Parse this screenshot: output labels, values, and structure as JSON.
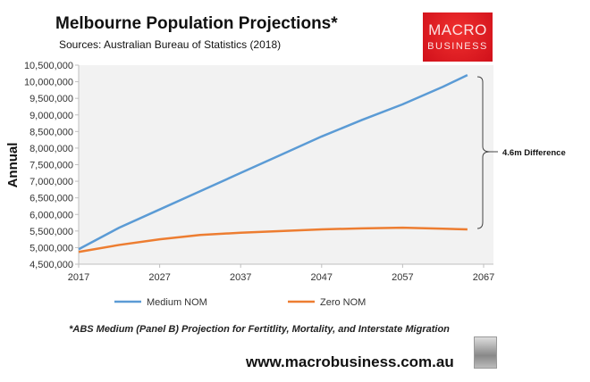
{
  "title": "Melbourne Population Projections*",
  "sources": "Sources: Australian Bureau of Statistics (2018)",
  "logo": {
    "line1": "MACRO",
    "line2": "BUSINESS"
  },
  "footnote": "*ABS Medium (Panel B) Projection for Fertitlity, Mortality, and Interstate Migration",
  "url": "www.macrobusiness.com.au",
  "chart_data": {
    "type": "line",
    "title": "Melbourne Population Projections*",
    "xlabel": "",
    "ylabel": "Annual",
    "xlim": [
      2017,
      2067
    ],
    "ylim": [
      4500000,
      10500000
    ],
    "xticks": [
      2017,
      2027,
      2037,
      2047,
      2057,
      2067
    ],
    "xtick_labels": [
      "2017",
      "2027",
      "2037",
      "2047",
      "2057",
      "2067"
    ],
    "yticks": [
      4500000,
      5000000,
      5500000,
      6000000,
      6500000,
      7000000,
      7500000,
      8000000,
      8500000,
      9000000,
      9500000,
      10000000,
      10500000
    ],
    "ytick_labels": [
      "4,500,000",
      "5,000,000",
      "5,500,000",
      "6,000,000",
      "6,500,000",
      "7,000,000",
      "7,500,000",
      "8,000,000",
      "8,500,000",
      "9,000,000",
      "9,500,000",
      "10,000,000",
      "10,500,000"
    ],
    "x": [
      2017,
      2022,
      2027,
      2032,
      2037,
      2042,
      2047,
      2052,
      2057,
      2062,
      2065
    ],
    "series": [
      {
        "name": "Medium NOM",
        "color": "#5b9bd5",
        "values": [
          4950000,
          5600000,
          6150000,
          6700000,
          7250000,
          7800000,
          8350000,
          8850000,
          9320000,
          9850000,
          10200000
        ]
      },
      {
        "name": "Zero NOM",
        "color": "#ed7d31",
        "values": [
          4870000,
          5080000,
          5250000,
          5380000,
          5450000,
          5500000,
          5550000,
          5580000,
          5600000,
          5570000,
          5550000
        ]
      }
    ],
    "annotation": "4.6m Difference",
    "grid": false,
    "legend_position": "bottom"
  }
}
